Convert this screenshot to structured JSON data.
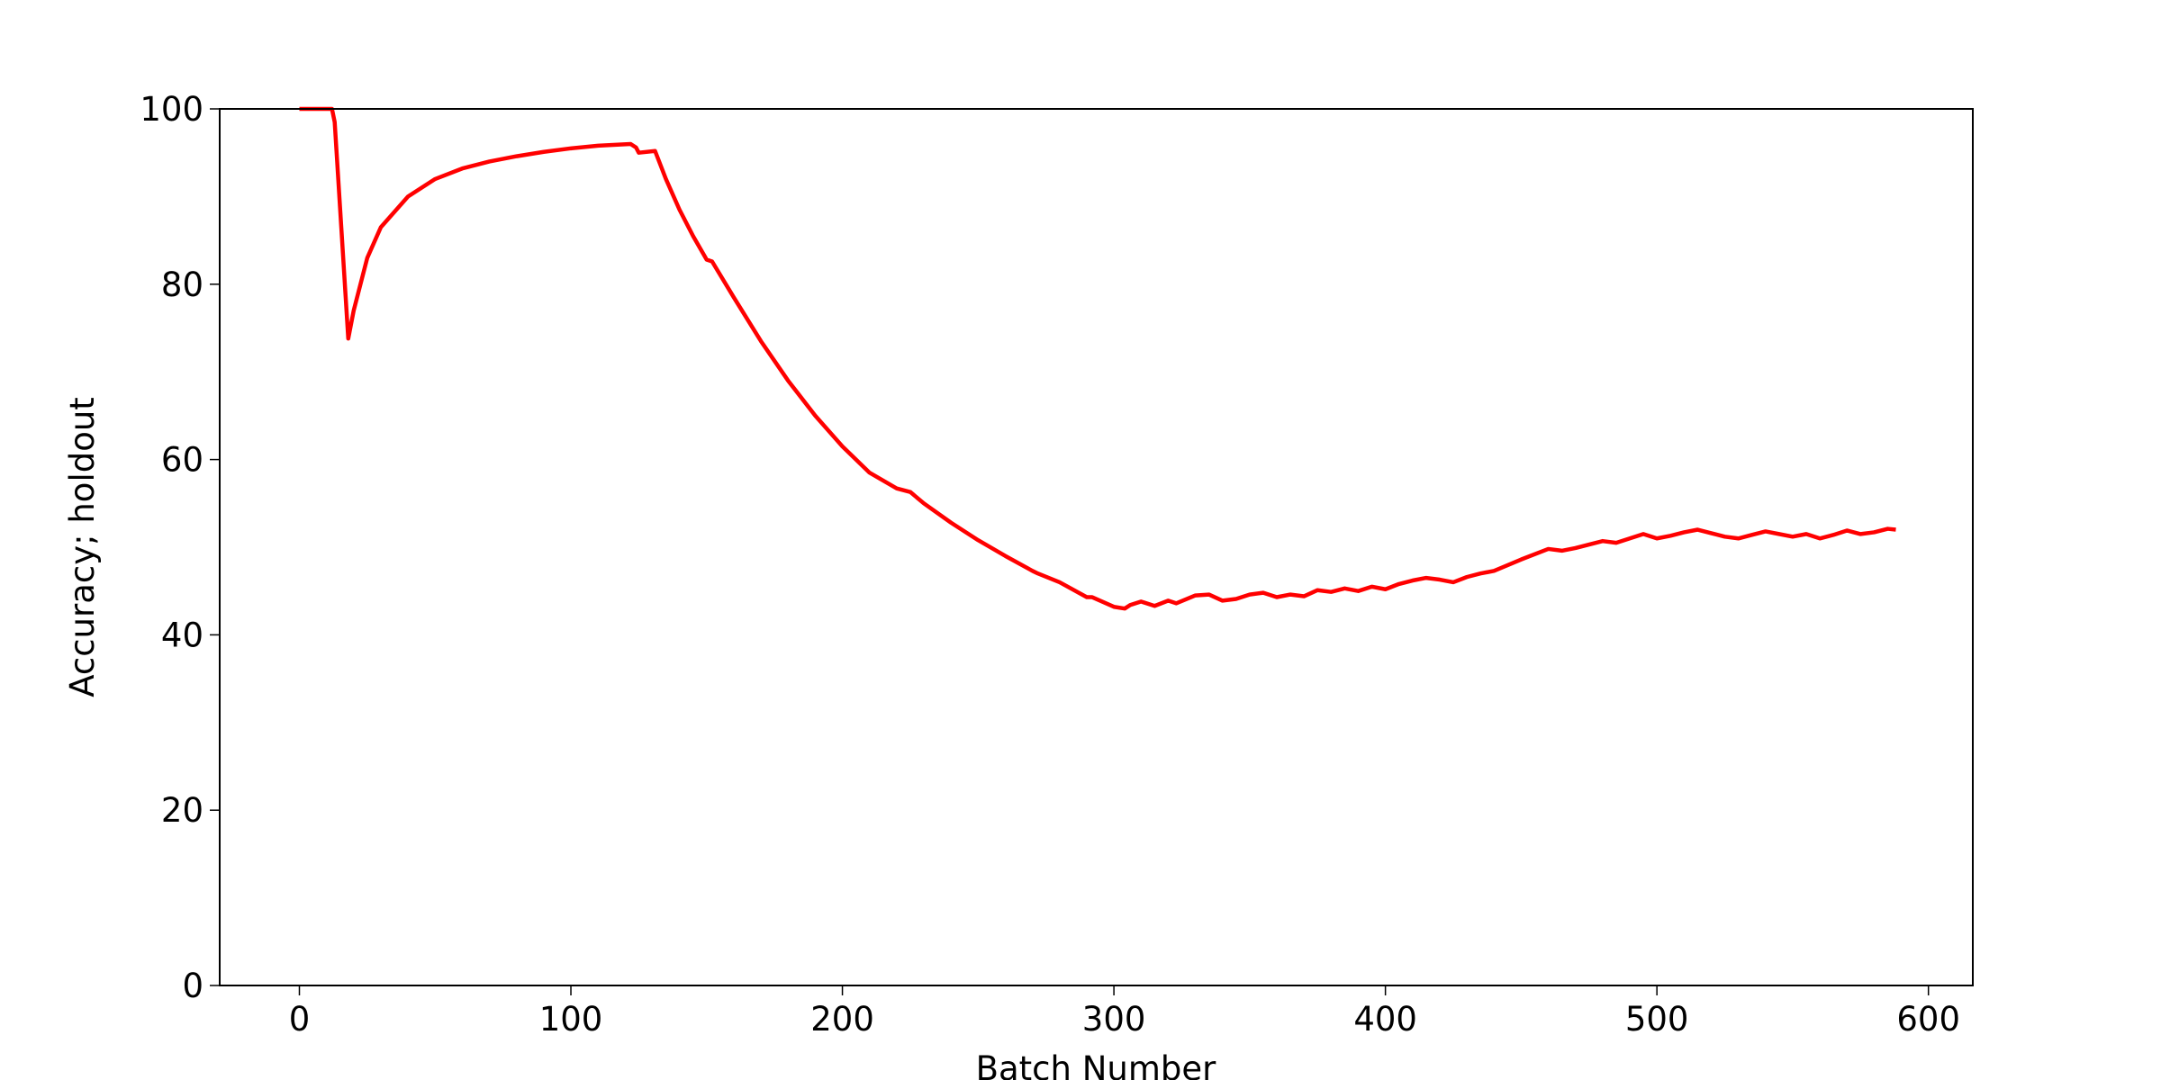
{
  "chart_data": {
    "type": "line",
    "xlabel": "Batch Number",
    "ylabel": "Accuracy; holdout",
    "x": [
      0,
      12,
      13,
      18,
      20,
      25,
      30,
      40,
      50,
      60,
      70,
      80,
      90,
      100,
      110,
      122,
      124,
      125,
      131,
      135,
      140,
      145,
      150,
      152,
      160,
      170,
      180,
      190,
      200,
      210,
      220,
      225,
      230,
      240,
      250,
      260,
      270,
      272,
      280,
      290,
      292,
      300,
      304,
      306,
      310,
      315,
      320,
      323,
      330,
      335,
      340,
      345,
      350,
      355,
      360,
      365,
      370,
      375,
      380,
      385,
      390,
      395,
      400,
      405,
      410,
      415,
      420,
      425,
      430,
      435,
      440,
      450,
      460,
      465,
      470,
      475,
      480,
      485,
      490,
      495,
      500,
      505,
      510,
      515,
      520,
      525,
      530,
      535,
      540,
      545,
      550,
      555,
      560,
      565,
      570,
      575,
      580,
      585,
      588
    ],
    "series": [
      {
        "color": "#ff0000",
        "values": [
          100,
          100,
          98.5,
          73.8,
          77,
          83,
          86.5,
          90,
          92,
          93.2,
          94,
          94.6,
          95.1,
          95.5,
          95.8,
          96,
          95.6,
          95,
          95.2,
          92,
          88.5,
          85.5,
          82.8,
          82.6,
          78.5,
          73.5,
          69,
          65,
          61.5,
          58.5,
          56.7,
          56.3,
          55,
          52.8,
          50.8,
          49,
          47.3,
          47,
          46,
          44.3,
          44.3,
          43.2,
          43,
          43.4,
          43.8,
          43.3,
          43.9,
          43.6,
          44.5,
          44.6,
          43.9,
          44.1,
          44.6,
          44.8,
          44.3,
          44.6,
          44.4,
          45.1,
          44.9,
          45.3,
          45,
          45.5,
          45.2,
          45.8,
          46.2,
          46.5,
          46.3,
          46,
          46.6,
          47,
          47.3,
          48.6,
          49.8,
          49.6,
          49.9,
          50.3,
          50.7,
          50.5,
          51,
          51.5,
          51,
          51.3,
          51.7,
          52,
          51.6,
          51.2,
          51,
          51.4,
          51.8,
          51.5,
          51.2,
          51.5,
          51,
          51.4,
          51.9,
          51.5,
          51.7,
          52.1,
          52
        ]
      }
    ],
    "xlim": [
      -29.35,
      616.35
    ],
    "ylim": [
      0,
      100
    ],
    "xticks": [
      0,
      100,
      200,
      300,
      400,
      500,
      600
    ],
    "yticks": [
      0,
      20,
      40,
      60,
      80,
      100
    ]
  }
}
